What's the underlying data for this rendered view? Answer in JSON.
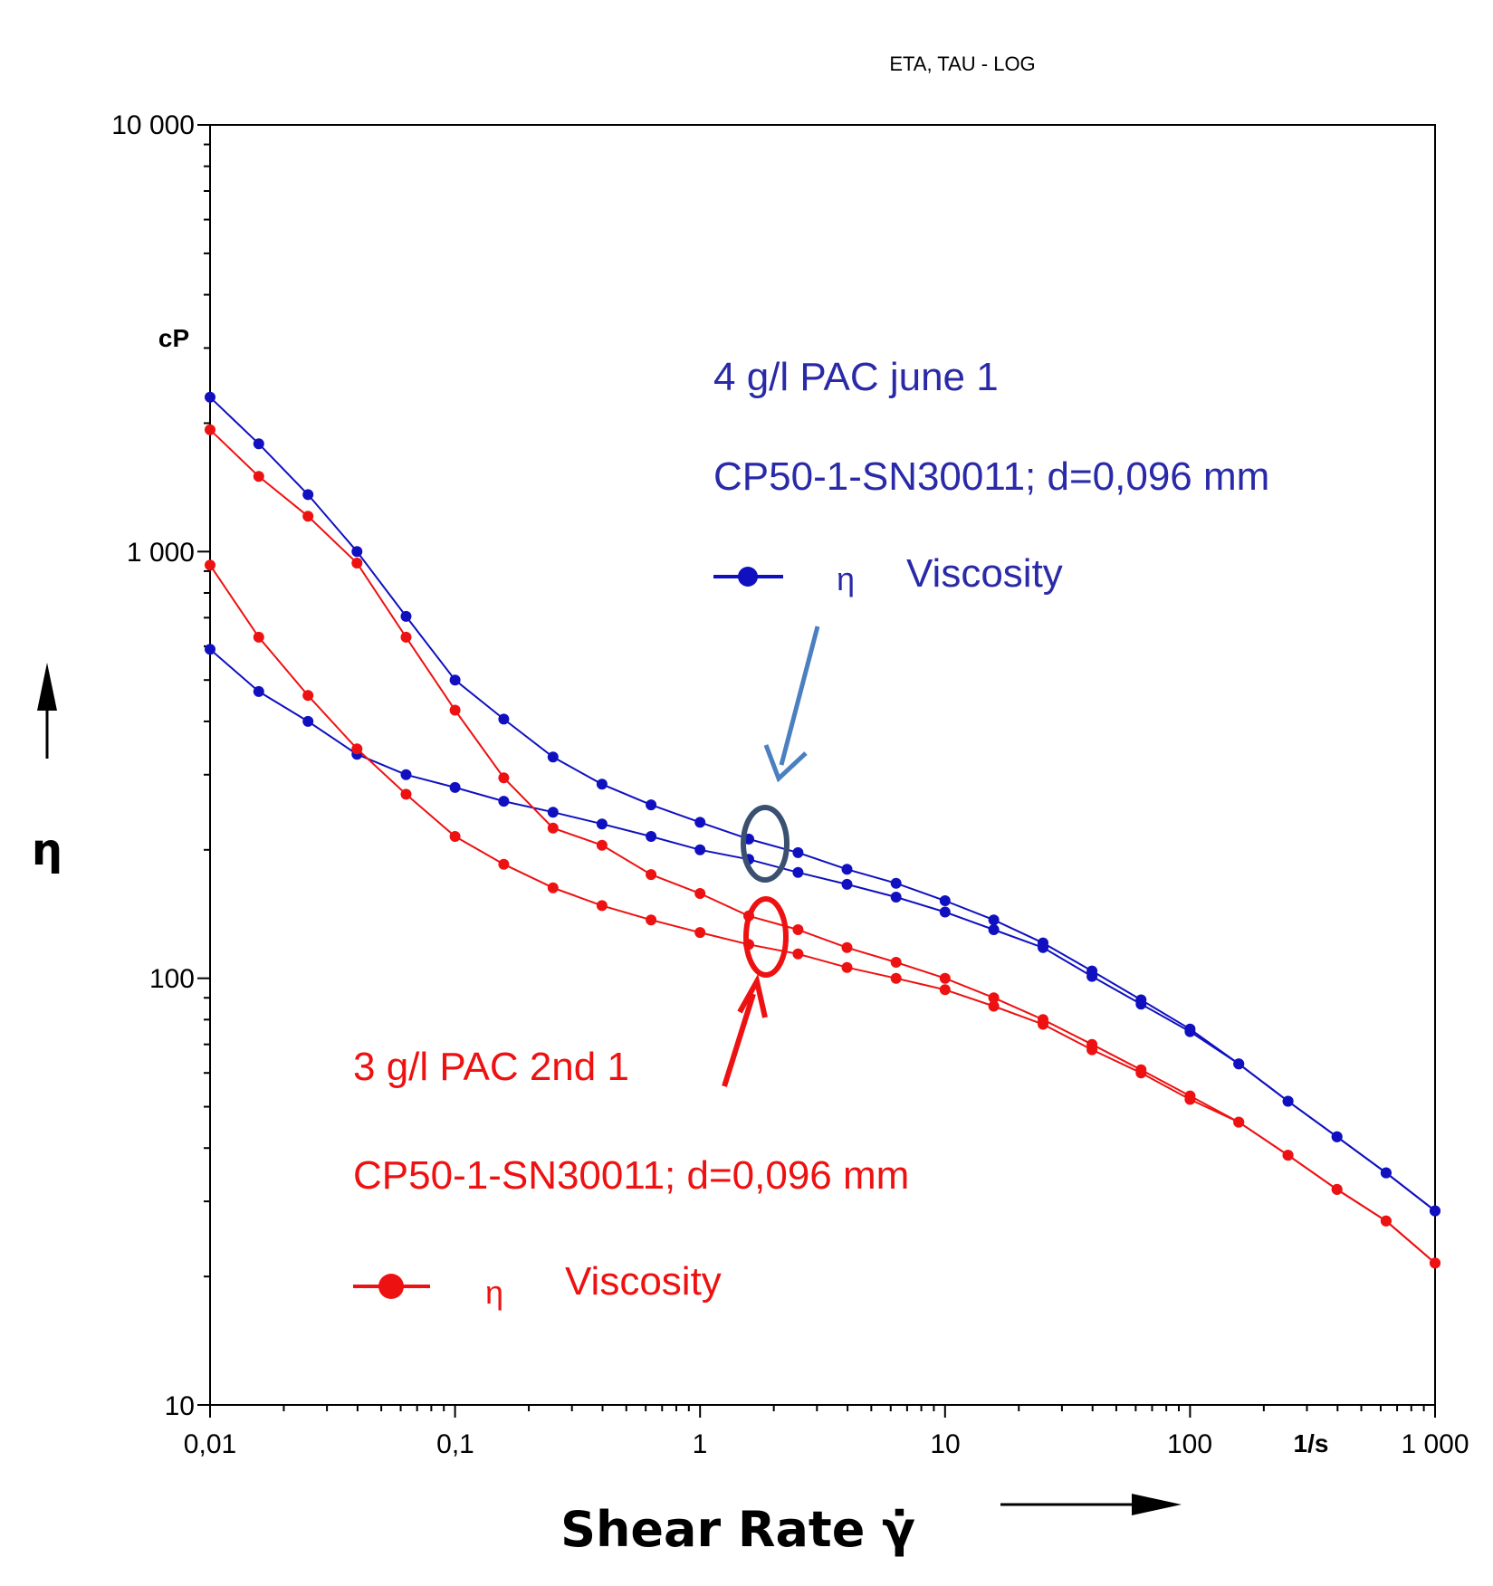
{
  "chart_data": {
    "type": "line",
    "title": "ETA, TAU - LOG",
    "xlabel": "Shear Rate γ̇",
    "ylabel": "η",
    "x_unit": "1/s",
    "y_unit": "cP",
    "x_scale": "log",
    "y_scale": "log",
    "xlim": [
      0.01,
      1000
    ],
    "ylim": [
      10,
      10000
    ],
    "grid": false,
    "x_ticks": [
      "0,01",
      "0,1",
      "1",
      "10",
      "100",
      "1 000"
    ],
    "y_ticks": [
      "10",
      "100",
      "1 000",
      "10 000"
    ],
    "series": [
      {
        "group": "blue",
        "color": "#1010c0",
        "x": [
          0.01,
          0.0158,
          0.0251,
          0.0398,
          0.0631,
          0.1,
          0.158,
          0.251,
          0.398,
          0.631,
          1,
          1.58,
          2.51,
          3.98,
          6.31,
          10,
          15.8,
          25.1,
          39.8,
          63.1,
          100,
          158,
          251,
          398,
          631,
          1000
        ],
        "y": [
          2300,
          1790,
          1360,
          1000,
          705,
          500,
          405,
          330,
          285,
          255,
          232,
          212,
          197,
          180,
          167,
          152,
          137,
          121,
          104,
          89,
          76,
          63,
          51.5,
          42.5,
          35,
          28.5
        ]
      },
      {
        "group": "blue",
        "color": "#1010c0",
        "x": [
          0.01,
          0.0158,
          0.0251,
          0.0398,
          0.0631,
          0.1,
          0.158,
          0.251,
          0.398,
          0.631,
          1,
          1.58,
          2.51,
          3.98,
          6.31,
          10,
          15.8,
          25.1,
          39.8,
          63.1,
          100,
          158,
          251,
          398,
          631,
          1000
        ],
        "y": [
          590,
          470,
          400,
          335,
          300,
          280,
          260,
          245,
          230,
          215,
          200,
          190,
          177,
          166,
          155,
          143,
          130,
          118,
          101,
          87,
          75,
          63,
          51.5,
          42.5,
          35,
          28.5
        ]
      },
      {
        "group": "red",
        "color": "#ee1111",
        "x": [
          0.01,
          0.0158,
          0.0251,
          0.0398,
          0.0631,
          0.1,
          0.158,
          0.251,
          0.398,
          0.631,
          1,
          1.58,
          2.51,
          3.98,
          6.31,
          10,
          15.8,
          25.1,
          39.8,
          63.1,
          100,
          158,
          251,
          398,
          631,
          1000
        ],
        "y": [
          1930,
          1500,
          1210,
          940,
          630,
          425,
          295,
          225,
          205,
          175,
          158,
          140,
          130,
          118,
          109,
          100,
          90,
          80,
          70,
          61,
          53,
          46,
          38.5,
          32,
          27,
          21.5
        ]
      },
      {
        "group": "red",
        "color": "#ee1111",
        "x": [
          0.01,
          0.0158,
          0.0251,
          0.0398,
          0.0631,
          0.1,
          0.158,
          0.251,
          0.398,
          0.631,
          1,
          1.58,
          2.51,
          3.98,
          6.31,
          10,
          15.8,
          25.1,
          39.8,
          63.1,
          100,
          158,
          251,
          398,
          631,
          1000
        ],
        "y": [
          930,
          630,
          460,
          345,
          270,
          215,
          185,
          163,
          148,
          137,
          128,
          120,
          114,
          106,
          100,
          94,
          86,
          78,
          68,
          60,
          52,
          46,
          38.5,
          32,
          27,
          21.5
        ]
      }
    ],
    "legends": [
      {
        "group": "blue",
        "name": "4 g/l PAC june 1",
        "sub": "CP50-1-SN30011; d=0,096 mm",
        "symbol": "η",
        "label": "Viscosity",
        "color": "#2a2aa8"
      },
      {
        "group": "red",
        "name": "3 g/l PAC 2nd 1",
        "sub": "CP50-1-SN30011; d=0,096 mm",
        "symbol": "η",
        "label": "Viscosity",
        "color": "#ee1111"
      }
    ],
    "annotations": [
      {
        "type": "ellipse",
        "color": "#3a5070",
        "x": 1.9,
        "y": 195
      },
      {
        "type": "ellipse",
        "color": "#ee1111",
        "x": 1.9,
        "y": 125
      }
    ]
  }
}
